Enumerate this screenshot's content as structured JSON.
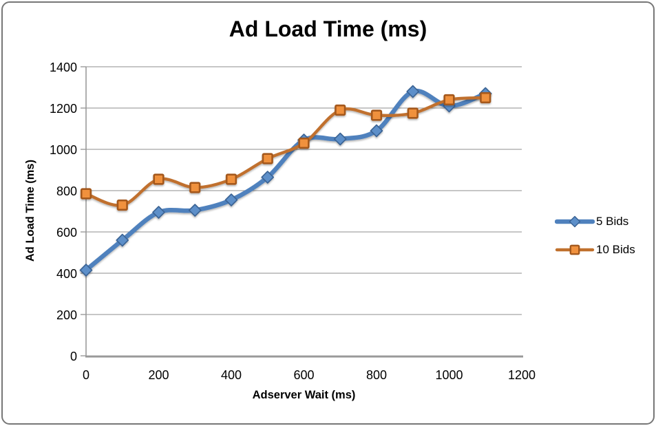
{
  "frame": {
    "border_color": "#767676",
    "background": "#ffffff"
  },
  "chart_data": {
    "type": "line",
    "title": "Ad Load Time (ms)",
    "xlabel": "Adserver Wait (ms)",
    "ylabel": "Ad Load Time (ms)",
    "x": [
      0,
      100,
      200,
      300,
      400,
      500,
      600,
      700,
      800,
      900,
      1000,
      1100
    ],
    "series": [
      {
        "name": "5 Bids",
        "marker": "diamond",
        "line_color": "#4f81bd",
        "line_width": 6.5,
        "marker_fill": "#5d8fc9",
        "marker_stroke": "#3a6394",
        "values": [
          415,
          560,
          695,
          705,
          755,
          865,
          1045,
          1050,
          1090,
          1280,
          1210,
          1270
        ]
      },
      {
        "name": "10 Bids",
        "marker": "square",
        "line_color": "#c0702d",
        "line_width": 4.4,
        "marker_fill": "#f0913e",
        "marker_stroke": "#a4591d",
        "values": [
          785,
          730,
          855,
          815,
          855,
          955,
          1030,
          1190,
          1165,
          1175,
          1240,
          1250
        ]
      }
    ],
    "xlim": [
      0,
      1200
    ],
    "ylim": [
      0,
      1400
    ],
    "x_ticks": [
      0,
      200,
      400,
      600,
      800,
      1000,
      1200
    ],
    "y_ticks": [
      0,
      200,
      400,
      600,
      800,
      1000,
      1200,
      1400
    ],
    "grid": "horizontal",
    "smooth": true,
    "legend_position": "right",
    "gridline_color": "#a3a3a3",
    "axis_color": "#999999",
    "tick_label_color": "#000000",
    "tick_font_size": 18
  }
}
